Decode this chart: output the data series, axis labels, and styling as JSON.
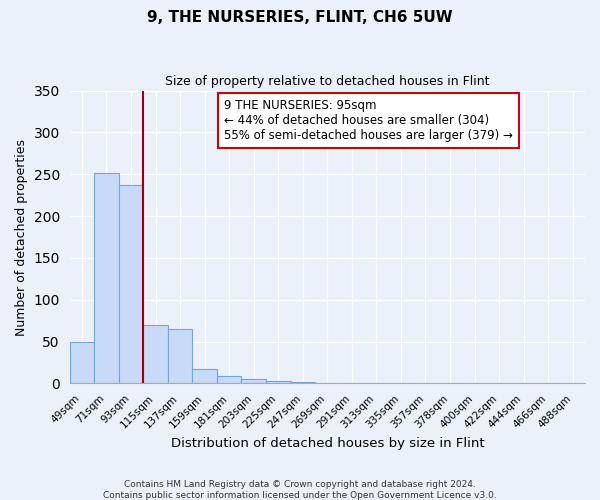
{
  "title": "9, THE NURSERIES, FLINT, CH6 5UW",
  "subtitle": "Size of property relative to detached houses in Flint",
  "xlabel": "Distribution of detached houses by size in Flint",
  "ylabel": "Number of detached properties",
  "bar_labels": [
    "49sqm",
    "71sqm",
    "93sqm",
    "115sqm",
    "137sqm",
    "159sqm",
    "181sqm",
    "203sqm",
    "225sqm",
    "247sqm",
    "269sqm",
    "291sqm",
    "313sqm",
    "335sqm",
    "357sqm",
    "378sqm",
    "400sqm",
    "422sqm",
    "444sqm",
    "466sqm",
    "488sqm"
  ],
  "bar_values": [
    50,
    252,
    237,
    70,
    65,
    17,
    9,
    5,
    3,
    2,
    1,
    0,
    0,
    0,
    0,
    0,
    0,
    0,
    0,
    0,
    0
  ],
  "bar_color": "#c9daf8",
  "bar_edge_color": "#6fa8dc",
  "bg_color": "#eaf1fb",
  "grid_color": "#ffffff",
  "vline_x": 2.5,
  "vline_color": "#990000",
  "annotation_text": "9 THE NURSERIES: 95sqm\n← 44% of detached houses are smaller (304)\n55% of semi-detached houses are larger (379) →",
  "annotation_box_color": "#ffffff",
  "annotation_box_edge": "#cc0000",
  "ylim": [
    0,
    350
  ],
  "yticks": [
    0,
    50,
    100,
    150,
    200,
    250,
    300,
    350
  ],
  "footer_line1": "Contains HM Land Registry data © Crown copyright and database right 2024.",
  "footer_line2": "Contains public sector information licensed under the Open Government Licence v3.0."
}
